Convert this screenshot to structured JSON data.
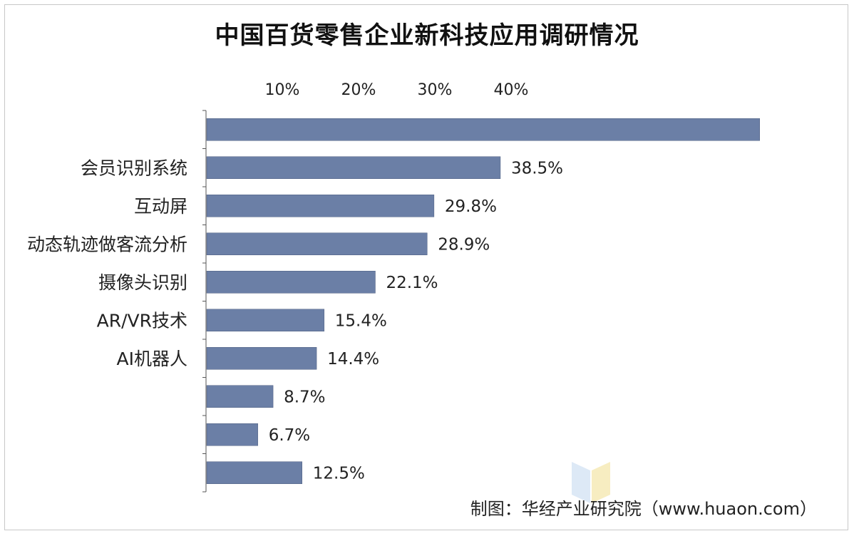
{
  "chart_data": {
    "type": "bar",
    "orientation": "horizontal",
    "title": "中国百货零售企业新科技应用调研情况",
    "x_ticks": [
      "10%",
      "20%",
      "30%",
      "40%"
    ],
    "xlim": [
      0,
      70
    ],
    "grid": false,
    "categories": [
      "",
      "会员识别系统",
      "互动屏",
      "动态轨迹做客流分析",
      "摄像头识别",
      "AR/VR技术",
      "AI机器人",
      "",
      "",
      ""
    ],
    "values": [
      72.5,
      38.5,
      29.8,
      28.9,
      22.1,
      15.4,
      14.4,
      8.7,
      6.7,
      12.5
    ],
    "value_labels": [
      "",
      "38.5%",
      "29.8%",
      "28.9%",
      "22.1%",
      "15.4%",
      "14.4%",
      "8.7%",
      "6.7%",
      "12.5%"
    ],
    "bar_color": "#6b7fa6"
  },
  "source": "制图：华经产业研究院（www.huaon.com）"
}
